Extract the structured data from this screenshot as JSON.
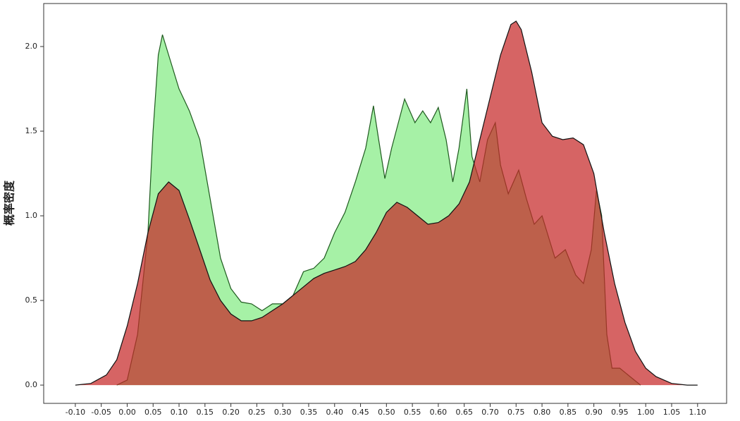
{
  "chart_data": {
    "type": "area",
    "y_label": "概率密度",
    "xlim": [
      -0.161,
      1.156
    ],
    "ylim": [
      -0.108,
      2.254
    ],
    "xticks": [
      {
        "value": -0.1,
        "label": "-0.10"
      },
      {
        "value": -0.05,
        "label": "-0.05"
      },
      {
        "value": 0,
        "label": "0.00"
      },
      {
        "value": 0.05,
        "label": "0.05"
      },
      {
        "value": 0.1,
        "label": "0.10"
      },
      {
        "value": 0.15,
        "label": "0.15"
      },
      {
        "value": 0.2,
        "label": "0.20"
      },
      {
        "value": 0.25,
        "label": "0.25"
      },
      {
        "value": 0.3,
        "label": "0.30"
      },
      {
        "value": 0.35,
        "label": "0.35"
      },
      {
        "value": 0.4,
        "label": "0.40"
      },
      {
        "value": 0.45,
        "label": "0.45"
      },
      {
        "value": 0.5,
        "label": "0.50"
      },
      {
        "value": 0.55,
        "label": "0.55"
      },
      {
        "value": 0.6,
        "label": "0.60"
      },
      {
        "value": 0.65,
        "label": "0.65"
      },
      {
        "value": 0.7,
        "label": "0.70"
      },
      {
        "value": 0.75,
        "label": "0.75"
      },
      {
        "value": 0.8,
        "label": "0.80"
      },
      {
        "value": 0.85,
        "label": "0.85"
      },
      {
        "value": 0.9,
        "label": "0.90"
      },
      {
        "value": 0.95,
        "label": "0.95"
      },
      {
        "value": 1.0,
        "label": "1.00"
      },
      {
        "value": 1.05,
        "label": "1.05"
      },
      {
        "value": 1.1,
        "label": "1.10"
      }
    ],
    "yticks": [
      {
        "value": 0,
        "label": "0.0"
      },
      0.5,
      {
        "value": 1,
        "label": "1.0"
      },
      1.5,
      {
        "value": 2,
        "label": "2.0"
      }
    ],
    "series": [
      {
        "color": "#90ee90",
        "line_color": "#1e5a1e",
        "x": [
          -0.02,
          0.0,
          0.02,
          0.04,
          0.05,
          0.06,
          0.068,
          0.08,
          0.1,
          0.12,
          0.14,
          0.16,
          0.18,
          0.2,
          0.22,
          0.24,
          0.26,
          0.28,
          0.3,
          0.32,
          0.34,
          0.36,
          0.38,
          0.4,
          0.42,
          0.44,
          0.46,
          0.475,
          0.485,
          0.497,
          0.51,
          0.535,
          0.555,
          0.57,
          0.585,
          0.6,
          0.615,
          0.628,
          0.64,
          0.655,
          0.665,
          0.68,
          0.695,
          0.71,
          0.72,
          0.735,
          0.755,
          0.77,
          0.785,
          0.8,
          0.815,
          0.825,
          0.845,
          0.865,
          0.88,
          0.895,
          0.905,
          0.915,
          0.925,
          0.935,
          0.95,
          0.97,
          0.99
        ],
        "values": [
          0,
          0.03,
          0.3,
          0.9,
          1.5,
          1.95,
          2.07,
          1.95,
          1.75,
          1.62,
          1.45,
          1.1,
          0.75,
          0.57,
          0.49,
          0.48,
          0.44,
          0.48,
          0.48,
          0.53,
          0.67,
          0.69,
          0.75,
          0.9,
          1.02,
          1.2,
          1.4,
          1.65,
          1.45,
          1.22,
          1.4,
          1.69,
          1.55,
          1.62,
          1.55,
          1.64,
          1.45,
          1.2,
          1.4,
          1.75,
          1.35,
          1.2,
          1.45,
          1.55,
          1.3,
          1.13,
          1.27,
          1.1,
          0.95,
          1.0,
          0.85,
          0.75,
          0.8,
          0.65,
          0.6,
          0.8,
          1.15,
          1.0,
          0.3,
          0.1,
          0.1,
          0.05,
          0
        ]
      },
      {
        "color": "#c62828",
        "line_color": "#111111",
        "x": [
          -0.1,
          -0.07,
          -0.04,
          -0.02,
          0.0,
          0.02,
          0.04,
          0.06,
          0.08,
          0.1,
          0.12,
          0.14,
          0.16,
          0.18,
          0.2,
          0.22,
          0.24,
          0.26,
          0.28,
          0.3,
          0.32,
          0.34,
          0.36,
          0.38,
          0.4,
          0.42,
          0.44,
          0.46,
          0.48,
          0.5,
          0.52,
          0.54,
          0.56,
          0.58,
          0.6,
          0.62,
          0.64,
          0.66,
          0.68,
          0.7,
          0.72,
          0.74,
          0.75,
          0.76,
          0.78,
          0.8,
          0.82,
          0.84,
          0.86,
          0.88,
          0.9,
          0.92,
          0.94,
          0.96,
          0.98,
          1.0,
          1.02,
          1.05,
          1.08,
          1.1
        ],
        "values": [
          0,
          0.01,
          0.06,
          0.15,
          0.35,
          0.6,
          0.9,
          1.13,
          1.2,
          1.15,
          0.98,
          0.8,
          0.62,
          0.5,
          0.42,
          0.38,
          0.38,
          0.4,
          0.44,
          0.48,
          0.53,
          0.58,
          0.63,
          0.66,
          0.68,
          0.7,
          0.73,
          0.8,
          0.9,
          1.02,
          1.08,
          1.05,
          1.0,
          0.95,
          0.96,
          1.0,
          1.07,
          1.2,
          1.45,
          1.7,
          1.95,
          2.13,
          2.15,
          2.1,
          1.85,
          1.55,
          1.47,
          1.45,
          1.46,
          1.42,
          1.25,
          0.9,
          0.6,
          0.37,
          0.2,
          0.1,
          0.05,
          0.01,
          0,
          0
        ]
      }
    ]
  }
}
